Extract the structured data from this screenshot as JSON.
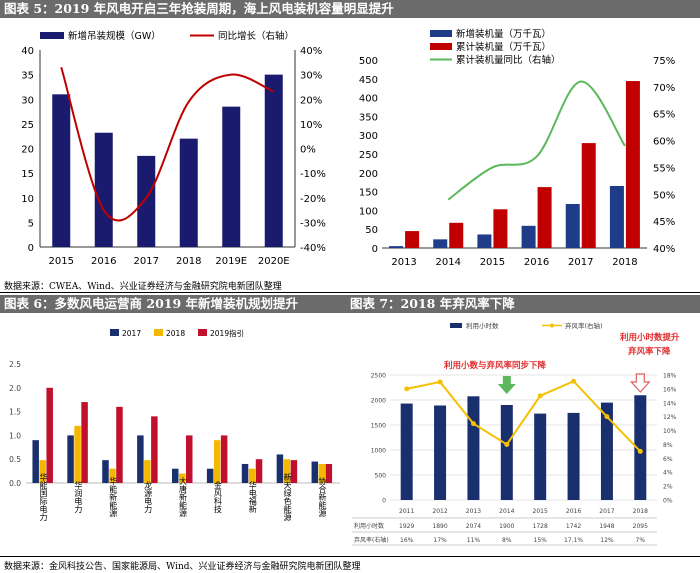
{
  "fig5": {
    "title": "图表 5：2019 年风电开启三年抢装周期，海上风电装机容量明显提升",
    "left": {
      "legend": [
        "新增吊装规模（GW）",
        "同比增长（右轴）"
      ],
      "colors": {
        "bar": "#1a1a6e",
        "line": "#c00000"
      }
    },
    "right": {
      "legend": [
        "新增装机量（万千瓦）",
        "累计装机量（万千瓦）",
        "累计装机量同比（右轴）"
      ],
      "colors": {
        "new": "#1f3c88",
        "cum": "#c00000",
        "yoy": "#5cb85c"
      }
    }
  },
  "source1": "数据来源：CWEA、Wind、兴业证券经济与金融研究院电新团队整理",
  "fig6": {
    "title": "图表 6：多数风电运营商 2019 年新增装机规划提升",
    "colors": {
      "s2017": "#1a2f6e",
      "s2018": "#f5b800",
      "s2019": "#c0102b"
    }
  },
  "fig7": {
    "title": "图表 7：2018 年弃风率下降",
    "legend": [
      "利用小时数",
      "弃风率(右轴)"
    ],
    "annotation1": "利用小数与弃风率同步下降",
    "annotation2": "利用小时数提升\n弃风率下降",
    "table_row_labels": [
      "利用小时数",
      "弃风率(右轴)"
    ],
    "colors": {
      "bar": "#1a2f6e",
      "line": "#f5c000",
      "arrow_down_green": "#5cb85c",
      "arrow_down_red": "#e06060",
      "annot": "#e03030"
    }
  },
  "source2": "数据来源：金风科技公告、国家能源局、Wind、兴业证券经济与金融研究院电新团队整理",
  "chart_data": [
    {
      "type": "bar",
      "id": "fig5-left",
      "categories": [
        "2015",
        "2016",
        "2017",
        "2018",
        "2019E",
        "2020E"
      ],
      "series": [
        {
          "name": "新增吊装规模（GW）",
          "values": [
            31,
            23.2,
            18.5,
            22,
            28.5,
            35
          ],
          "axis": "left"
        },
        {
          "name": "同比增长（右轴）",
          "values": [
            0.33,
            -0.25,
            -0.2,
            0.19,
            0.3,
            0.23
          ],
          "axis": "right",
          "kind": "line"
        }
      ],
      "ylim": [
        0,
        40
      ],
      "yticks": [
        "0",
        "5",
        "10",
        "15",
        "20",
        "25",
        "30",
        "35",
        "40"
      ],
      "y2lim": [
        -0.4,
        0.4
      ],
      "y2ticks": [
        "-40%",
        "-30%",
        "-20%",
        "-10%",
        "0%",
        "10%",
        "20%",
        "30%",
        "40%"
      ],
      "legend": "top"
    },
    {
      "type": "bar",
      "id": "fig5-right",
      "categories": [
        "2013",
        "2014",
        "2015",
        "2016",
        "2017",
        "2018"
      ],
      "series": [
        {
          "name": "新增装机量（万千瓦）",
          "values": [
            5,
            23,
            36,
            59,
            117,
            165
          ],
          "axis": "left"
        },
        {
          "name": "累计装机量（万千瓦）",
          "values": [
            45,
            67,
            103,
            162,
            279,
            444
          ],
          "axis": "left"
        },
        {
          "name": "累计装机量同比（右轴）",
          "values": [
            null,
            0.49,
            0.55,
            0.57,
            0.71,
            0.59
          ],
          "axis": "right",
          "kind": "line"
        }
      ],
      "ylim": [
        0,
        500
      ],
      "yticks": [
        "0",
        "50",
        "100",
        "150",
        "200",
        "250",
        "300",
        "350",
        "400",
        "450",
        "500"
      ],
      "y2lim": [
        0.4,
        0.75
      ],
      "y2ticks": [
        "40%",
        "45%",
        "50%",
        "55%",
        "60%",
        "65%",
        "70%",
        "75%"
      ],
      "legend": "top"
    },
    {
      "type": "bar",
      "id": "fig6",
      "categories": [
        "华能国际电力",
        "华润电力",
        "华能新能源",
        "龙源电力",
        "大唐新能源",
        "金风科技",
        "华电福新",
        "新天绿色能源",
        "协合新能源"
      ],
      "series": [
        {
          "name": "2017",
          "values": [
            0.9,
            1.0,
            0.48,
            1.0,
            0.3,
            0.3,
            0.4,
            0.6,
            0.45
          ]
        },
        {
          "name": "2018",
          "values": [
            0.48,
            1.2,
            0.3,
            0.48,
            0.2,
            0.9,
            0.3,
            0.5,
            0.4
          ]
        },
        {
          "name": "2019指引",
          "values": [
            2.0,
            1.7,
            1.6,
            1.4,
            1.0,
            1.0,
            0.5,
            0.48,
            0.4
          ]
        }
      ],
      "ylim": [
        0,
        2.5
      ],
      "yticks": [
        "0.0",
        "0.5",
        "1.0",
        "1.5",
        "2.0",
        "2.5"
      ],
      "legend": "top"
    },
    {
      "type": "bar",
      "id": "fig7",
      "categories": [
        "2011",
        "2012",
        "2013",
        "2014",
        "2015",
        "2016",
        "2017",
        "2018"
      ],
      "series": [
        {
          "name": "利用小时数",
          "values": [
            1929,
            1890,
            2074,
            1900,
            1728,
            1742,
            1948,
            2095
          ],
          "labels": [
            "1929",
            "1890",
            "2074",
            "1900",
            "1728",
            "1742",
            "1948",
            "2095"
          ]
        },
        {
          "name": "弃风率(右轴)",
          "values": [
            0.16,
            0.17,
            0.11,
            0.08,
            0.15,
            0.171,
            0.12,
            0.07
          ],
          "labels": [
            "16%",
            "17%",
            "11%",
            "8%",
            "15%",
            "17.1%",
            "12%",
            "7%"
          ],
          "axis": "right",
          "kind": "line"
        }
      ],
      "ylim": [
        0,
        2500
      ],
      "yticks": [
        "0",
        "500",
        "1000",
        "1500",
        "2000",
        "2500"
      ],
      "y2lim": [
        0,
        0.18
      ],
      "y2ticks": [
        "0%",
        "2%",
        "4%",
        "6%",
        "8%",
        "10%",
        "12%",
        "14%",
        "16%",
        "18%"
      ],
      "legend": "top"
    }
  ]
}
